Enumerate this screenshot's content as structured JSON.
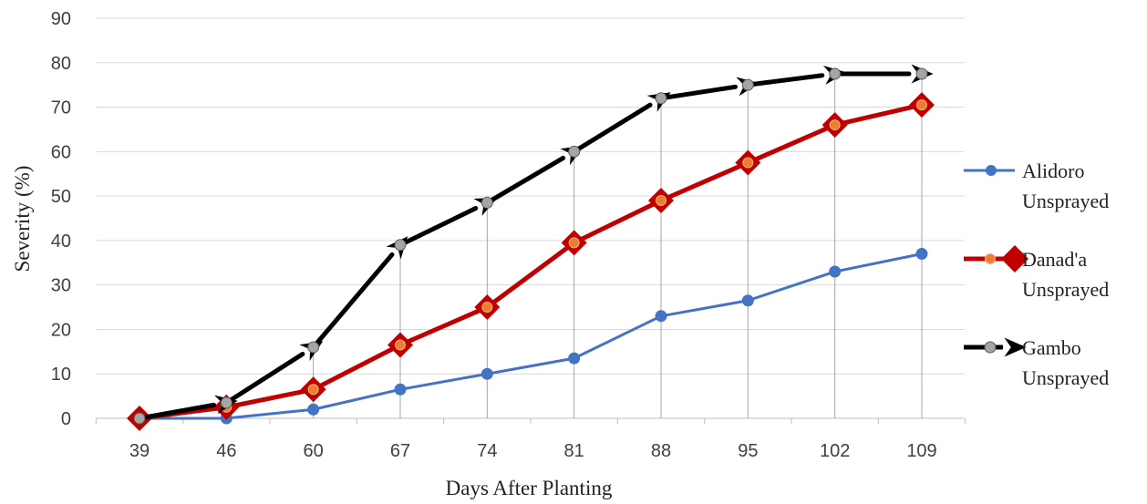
{
  "chart_data": {
    "type": "line",
    "title": "",
    "xlabel": "Days After Planting",
    "ylabel": "Severity (%)",
    "categories": [
      "39",
      "46",
      "60",
      "67",
      "74",
      "81",
      "88",
      "95",
      "102",
      "109"
    ],
    "ylim": [
      0,
      90
    ],
    "yticks": [
      0,
      10,
      20,
      30,
      40,
      50,
      60,
      70,
      80,
      90
    ],
    "grid": "horizontal major gridlines, vertical drop lines",
    "legend_position": "right",
    "series": [
      {
        "name": "Alidoro Unsprayed",
        "legend_lines": [
          "Alidoro",
          "Unsprayed"
        ],
        "color": "#4472C4",
        "marker": "circle",
        "values": [
          0,
          0,
          2,
          6.5,
          10,
          13.5,
          23,
          26.5,
          33,
          37
        ]
      },
      {
        "name": "Danad'a Unsprayed",
        "legend_lines": [
          "Danad'a",
          "Unsprayed"
        ],
        "color": "#C00000",
        "marker_fill": "#ED7D31",
        "marker": "diamond",
        "values": [
          0,
          2.5,
          6.5,
          16.5,
          25,
          39.5,
          49,
          57.5,
          66,
          70.5
        ]
      },
      {
        "name": "Gambo Unsprayed",
        "legend_lines": [
          "Gambo",
          "Unsprayed"
        ],
        "color": "#000000",
        "marker_fill": "#A5A5A5",
        "marker": "arrow",
        "values": [
          0,
          3.5,
          16,
          39,
          48.5,
          60,
          72,
          75,
          77.5,
          77.5
        ]
      }
    ]
  }
}
